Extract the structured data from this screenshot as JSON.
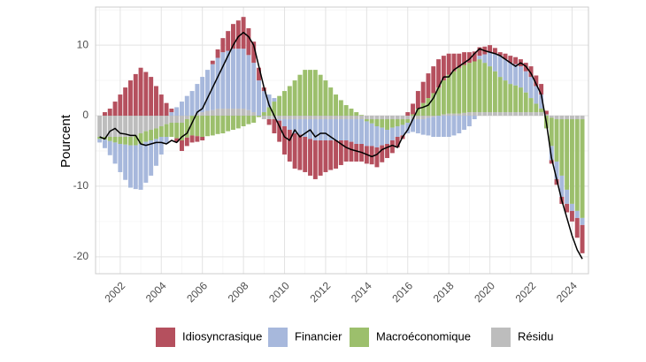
{
  "chart_data": {
    "type": "stacked_bar_line",
    "y_label": "Pourcent",
    "xlim": [
      2000.8,
      2024.8
    ],
    "xticks": [
      2002,
      2004,
      2006,
      2008,
      2010,
      2012,
      2014,
      2016,
      2018,
      2020,
      2022,
      2024
    ],
    "x_minor_ticks": [
      2001,
      2003,
      2005,
      2007,
      2009,
      2011,
      2013,
      2015,
      2017,
      2019,
      2021,
      2023
    ],
    "ylim": [
      -22.4,
      15.4
    ],
    "yticks": [
      -20,
      -10,
      0,
      10
    ],
    "y_minor_ticks": [
      -15,
      -5,
      5,
      15
    ],
    "grid": true,
    "legend_position": "bottom",
    "x": [
      2001,
      2001.25,
      2001.5,
      2001.75,
      2002,
      2002.25,
      2002.5,
      2002.75,
      2003,
      2003.25,
      2003.5,
      2003.75,
      2004,
      2004.25,
      2004.5,
      2004.75,
      2005,
      2005.25,
      2005.5,
      2005.75,
      2006,
      2006.25,
      2006.5,
      2006.75,
      2007,
      2007.25,
      2007.5,
      2007.75,
      2008,
      2008.25,
      2008.5,
      2008.75,
      2009,
      2009.25,
      2009.5,
      2009.75,
      2010,
      2010.25,
      2010.5,
      2010.75,
      2011,
      2011.25,
      2011.5,
      2011.75,
      2012,
      2012.25,
      2012.5,
      2012.75,
      2013,
      2013.25,
      2013.5,
      2013.75,
      2014,
      2014.25,
      2014.5,
      2014.75,
      2015,
      2015.25,
      2015.5,
      2015.75,
      2016,
      2016.25,
      2016.5,
      2016.75,
      2017,
      2017.25,
      2017.5,
      2017.75,
      2018,
      2018.25,
      2018.5,
      2018.75,
      2019,
      2019.25,
      2019.5,
      2019.75,
      2020,
      2020.25,
      2020.5,
      2020.75,
      2021,
      2021.25,
      2021.5,
      2021.75,
      2022,
      2022.25,
      2022.5,
      2022.75,
      2023,
      2023.25,
      2023.5,
      2023.75,
      2024,
      2024.25,
      2024.5
    ],
    "series": [
      {
        "name": "Idiosyncrasique",
        "color": "#b5505e",
        "values": [
          0,
          0.5,
          1,
          2,
          3,
          4,
          5,
          5.9,
          6.8,
          6.2,
          5.5,
          4.2,
          3,
          1.8,
          0.5,
          -0.5,
          -1.5,
          -1.2,
          -1,
          -0.8,
          -0.5,
          0,
          0.5,
          1.2,
          2,
          2.8,
          3.5,
          4,
          4.5,
          3.8,
          3,
          1.8,
          0.5,
          -0.8,
          -2,
          -3,
          -4,
          -4.5,
          -5,
          -5,
          -5,
          -5.2,
          -5.5,
          -5,
          -4.5,
          -4.2,
          -4,
          -3.5,
          -3,
          -2.8,
          -2.5,
          -2.5,
          -2.5,
          -2.6,
          -2.8,
          -2.4,
          -2,
          -1.8,
          -1.5,
          -0.5,
          0.5,
          1.5,
          2.5,
          3,
          3.5,
          3.8,
          4,
          3.5,
          3,
          2.5,
          2,
          1.8,
          1.5,
          1.4,
          1.2,
          1.1,
          1,
          0.8,
          0.5,
          0.8,
          1,
          1,
          1,
          1.2,
          1.5,
          1.5,
          1.5,
          0.5,
          -0.5,
          -0.8,
          -1,
          -1.2,
          -1.5,
          -2.8,
          -4
        ]
      },
      {
        "name": "Financier",
        "color": "#a7b8dc",
        "values": [
          -0.5,
          -1.2,
          -2,
          -3,
          -4,
          -5,
          -6,
          -6.2,
          -6.5,
          -5.8,
          -5,
          -3.8,
          -2.5,
          -1,
          0.5,
          1.2,
          2,
          2.8,
          3.5,
          4.2,
          5,
          5.8,
          6.5,
          7.2,
          8,
          8.2,
          8.5,
          8.5,
          8.5,
          7.8,
          7,
          5,
          3,
          1.8,
          0.5,
          -0.2,
          -1,
          -1.5,
          -2,
          -2.2,
          -2.5,
          -2.8,
          -3,
          -3,
          -3,
          -3,
          -3,
          -3,
          -3,
          -3.2,
          -3.5,
          -3.5,
          -3.5,
          -3.2,
          -3,
          -2.5,
          -2,
          -1.8,
          -1.5,
          -1.5,
          -1.5,
          -1.8,
          -2,
          -2.2,
          -2.5,
          -2.8,
          -3,
          -3,
          -3,
          -2.8,
          -2.5,
          -2,
          -1.5,
          -0.5,
          0.5,
          1.2,
          2,
          2.5,
          3,
          3,
          3,
          3,
          3,
          3,
          3,
          2.5,
          2,
          0,
          -2,
          -2.5,
          -3,
          -2,
          -1,
          -1,
          -1
        ]
      },
      {
        "name": "Macroéconomique",
        "color": "#9cbf6c",
        "values": [
          -0.3,
          -0.4,
          -0.6,
          -0.8,
          -1,
          -1.1,
          -1.2,
          -1.4,
          -1.5,
          -1.5,
          -1.5,
          -1.5,
          -1.5,
          -1.8,
          -2,
          -2.2,
          -2.5,
          -2.6,
          -2.8,
          -2.9,
          -3,
          -2.9,
          -2.8,
          -2.6,
          -2.5,
          -2.2,
          -2,
          -1.8,
          -1.5,
          -1.2,
          -1,
          -0.2,
          0.5,
          1.2,
          2,
          2.8,
          3.5,
          4.2,
          5,
          5.8,
          6.5,
          6.5,
          6.5,
          5.8,
          5,
          4,
          3,
          2.2,
          1.5,
          1,
          0.5,
          0.1,
          -0.3,
          -0.6,
          -1,
          -1.2,
          -1.5,
          -1.2,
          -1,
          -0.8,
          -0.5,
          0.2,
          1,
          1.8,
          2.5,
          3.2,
          4,
          4.8,
          5.5,
          6,
          6.5,
          6.8,
          7,
          7.2,
          7.5,
          7,
          6.5,
          5.8,
          5,
          4.5,
          4,
          3.8,
          3.5,
          2.8,
          2,
          1.2,
          0.5,
          -1.8,
          -4,
          -6,
          -8,
          -10,
          -12,
          -13,
          -14
        ]
      },
      {
        "name": "Résidu",
        "color": "#bdbdbd",
        "values": [
          -3,
          -3,
          -3,
          -3,
          -3,
          -3,
          -3,
          -2.8,
          -2.5,
          -2.2,
          -2,
          -1.8,
          -1.5,
          -1.2,
          -1,
          -1,
          -1,
          -0.5,
          0,
          0.3,
          0.5,
          0.7,
          0.8,
          1,
          1,
          1,
          1,
          1,
          1,
          0.8,
          0.5,
          0,
          -0.5,
          -0.5,
          -0.5,
          -0.5,
          -0.5,
          -0.5,
          -0.5,
          -0.5,
          -0.5,
          -0.5,
          -0.5,
          -0.5,
          -0.5,
          -0.5,
          -0.5,
          -0.5,
          -0.5,
          -0.5,
          -0.5,
          -0.5,
          -0.5,
          -0.5,
          -0.5,
          -0.5,
          -0.5,
          -0.5,
          -0.5,
          -0.5,
          -0.5,
          -0.5,
          -0.5,
          -0.5,
          -0.3,
          -0.2,
          0,
          0.2,
          0.3,
          0.3,
          0.3,
          0.4,
          0.5,
          0.5,
          0.5,
          0.5,
          0.5,
          0.5,
          0.5,
          0.5,
          0.5,
          0.5,
          0.5,
          0.5,
          0.5,
          0.5,
          0.5,
          0.2,
          -0.3,
          -0.5,
          -0.5,
          -0.5,
          -0.5,
          -0.5,
          -0.5
        ]
      }
    ],
    "stack_order": [
      3,
      2,
      1,
      0
    ],
    "line": {
      "color": "#000000",
      "values": [
        -3,
        -3.3,
        -2.2,
        -1.8,
        -2.5,
        -2.6,
        -2.8,
        -2.8,
        -4,
        -4.2,
        -4,
        -3.8,
        -3.8,
        -4,
        -3.5,
        -3.8,
        -3,
        -2.5,
        -1,
        0.5,
        1,
        2.5,
        4,
        5.5,
        7,
        8.5,
        10,
        11.2,
        11.8,
        11.2,
        10,
        7,
        4,
        1.5,
        0,
        -1.5,
        -3,
        -3.5,
        -2,
        -3,
        -2.5,
        -2,
        -3,
        -2.5,
        -2.5,
        -3,
        -3.5,
        -4,
        -4.5,
        -4.8,
        -5,
        -5.2,
        -5.5,
        -5.8,
        -5.5,
        -4.8,
        -4.5,
        -4.2,
        -4.5,
        -3,
        -2,
        -0.5,
        1,
        1.2,
        1.5,
        2.5,
        4,
        5.5,
        5.5,
        6.5,
        7,
        7.5,
        8,
        8.8,
        9.5,
        9.2,
        9,
        8.8,
        8.5,
        8,
        7.5,
        7,
        7.5,
        7,
        6,
        4.5,
        3,
        -1,
        -6,
        -9,
        -12,
        -14.5,
        -17,
        -19,
        -20.3
      ]
    }
  }
}
